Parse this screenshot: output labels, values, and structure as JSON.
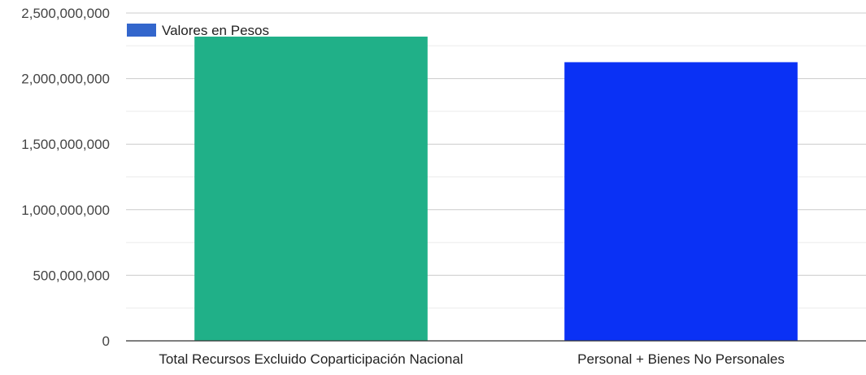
{
  "chart_data": {
    "type": "bar",
    "title": "",
    "xlabel": "",
    "ylabel": "",
    "categories": [
      "Total Recursos Excluido Coparticipación Nacional",
      "Personal + Bienes No Personales"
    ],
    "series": [
      {
        "name": "Valores en Pesos",
        "values": [
          2320000000,
          2125000000
        ],
        "colors": [
          "#20b088",
          "#0a31f5"
        ],
        "legend_color": "#3366cc"
      }
    ],
    "ylim": [
      0,
      2500000000
    ],
    "yticks": [
      0,
      500000000,
      1000000000,
      1500000000,
      2000000000,
      2500000000
    ],
    "ytick_labels": [
      "0",
      "500,000,000",
      "1,000,000,000",
      "1,500,000,000",
      "2,000,000,000",
      "2,500,000,000"
    ],
    "grid": true,
    "legend_position": "top-left"
  }
}
